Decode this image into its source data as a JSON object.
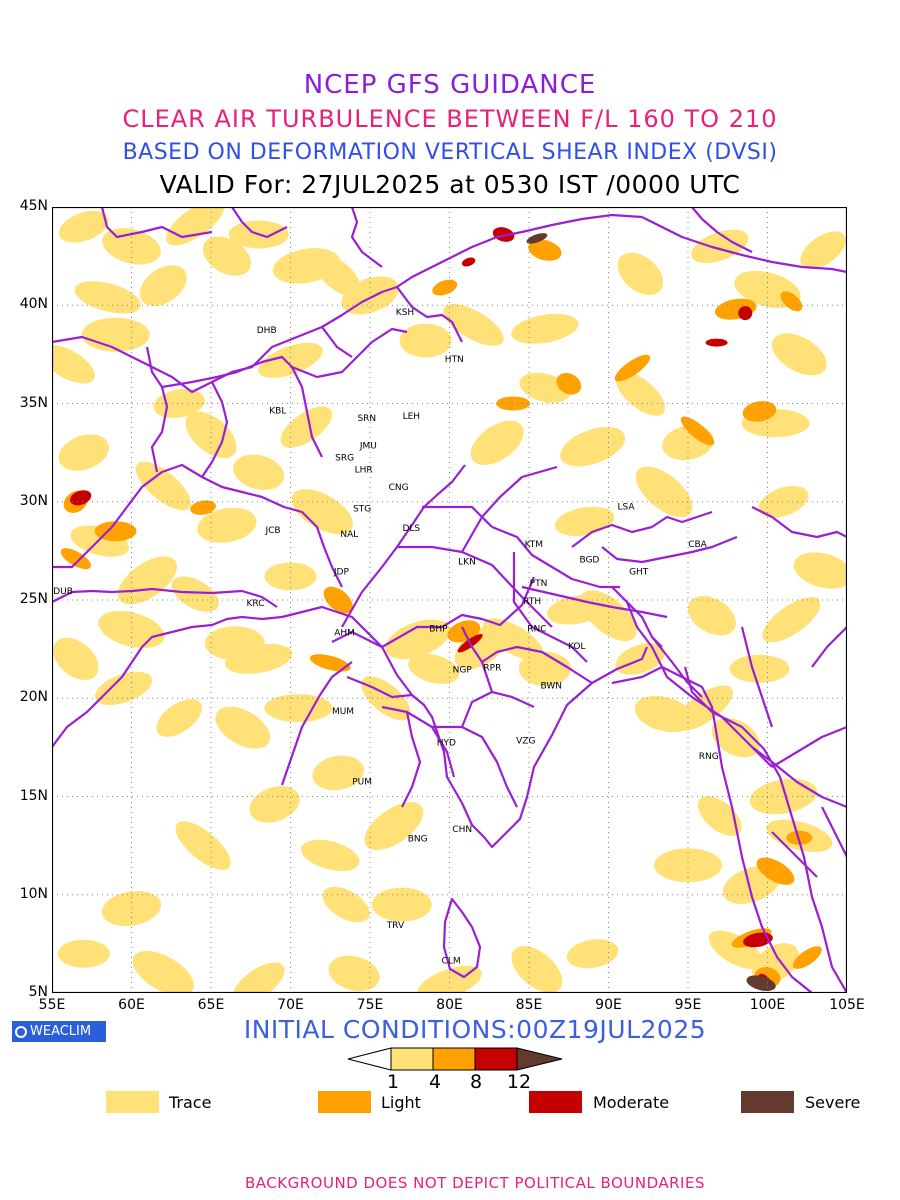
{
  "titles": {
    "line1": "NCEP GFS GUIDANCE",
    "line2": "CLEAR AIR TURBULENCE BETWEEN F/L 160 TO 210",
    "line3": "BASED ON DEFORMATION VERTICAL SHEAR INDEX (DVSI)",
    "line4": "VALID For: 27JUL2025 at 0530 IST /0000 UTC"
  },
  "axes": {
    "lat_labels": [
      "45N",
      "40N",
      "35N",
      "30N",
      "25N",
      "20N",
      "15N",
      "10N",
      "5N"
    ],
    "lon_labels": [
      "55E",
      "60E",
      "65E",
      "70E",
      "75E",
      "80E",
      "85E",
      "90E",
      "95E",
      "100E",
      "105E"
    ],
    "lat_range": [
      5,
      45
    ],
    "lon_range": [
      55,
      105
    ]
  },
  "stations": [
    {
      "code": "KSH",
      "lon": 77.2,
      "lat": 39.5
    },
    {
      "code": "DHB",
      "lon": 68.5,
      "lat": 38.6
    },
    {
      "code": "HTN",
      "lon": 80.3,
      "lat": 37.1
    },
    {
      "code": "KBL",
      "lon": 69.2,
      "lat": 34.5
    },
    {
      "code": "SRN",
      "lon": 74.8,
      "lat": 34.1
    },
    {
      "code": "LEH",
      "lon": 77.6,
      "lat": 34.2
    },
    {
      "code": "JMU",
      "lon": 74.9,
      "lat": 32.7
    },
    {
      "code": "SRG",
      "lon": 73.4,
      "lat": 32.1
    },
    {
      "code": "LHR",
      "lon": 74.6,
      "lat": 31.5
    },
    {
      "code": "CNG",
      "lon": 76.8,
      "lat": 30.6
    },
    {
      "code": "STG",
      "lon": 74.5,
      "lat": 29.5
    },
    {
      "code": "DLS",
      "lon": 77.6,
      "lat": 28.5
    },
    {
      "code": "NAL",
      "lon": 73.7,
      "lat": 28.2
    },
    {
      "code": "JCB",
      "lon": 68.9,
      "lat": 28.4
    },
    {
      "code": "LSA",
      "lon": 91.1,
      "lat": 29.6
    },
    {
      "code": "KTM",
      "lon": 85.3,
      "lat": 27.7
    },
    {
      "code": "CBA",
      "lon": 95.6,
      "lat": 27.7
    },
    {
      "code": "BGD",
      "lon": 88.8,
      "lat": 26.9
    },
    {
      "code": "GHT",
      "lon": 91.9,
      "lat": 26.3
    },
    {
      "code": "LKN",
      "lon": 81.1,
      "lat": 26.8
    },
    {
      "code": "JDP",
      "lon": 73.2,
      "lat": 26.3
    },
    {
      "code": "PTN",
      "lon": 85.6,
      "lat": 25.7
    },
    {
      "code": "DUB",
      "lon": 55.7,
      "lat": 25.3
    },
    {
      "code": "KRC",
      "lon": 67.8,
      "lat": 24.7
    },
    {
      "code": "RTH",
      "lon": 85.2,
      "lat": 24.8
    },
    {
      "code": "AHM",
      "lon": 73.4,
      "lat": 23.2
    },
    {
      "code": "BHP",
      "lon": 79.3,
      "lat": 23.4
    },
    {
      "code": "RNC",
      "lon": 85.5,
      "lat": 23.4
    },
    {
      "code": "KOL",
      "lon": 88.0,
      "lat": 22.5
    },
    {
      "code": "NGP",
      "lon": 80.8,
      "lat": 21.3
    },
    {
      "code": "RPR",
      "lon": 82.7,
      "lat": 21.4
    },
    {
      "code": "BWN",
      "lon": 86.4,
      "lat": 20.5
    },
    {
      "code": "MUM",
      "lon": 73.3,
      "lat": 19.2
    },
    {
      "code": "HYD",
      "lon": 79.8,
      "lat": 17.6
    },
    {
      "code": "VZG",
      "lon": 84.8,
      "lat": 17.7
    },
    {
      "code": "RNG",
      "lon": 96.3,
      "lat": 16.9
    },
    {
      "code": "PUM",
      "lon": 74.5,
      "lat": 15.6
    },
    {
      "code": "CHN",
      "lon": 80.8,
      "lat": 13.2
    },
    {
      "code": "BNG",
      "lon": 78.0,
      "lat": 12.7
    },
    {
      "code": "TRV",
      "lon": 76.6,
      "lat": 8.3
    },
    {
      "code": "CLM",
      "lon": 80.1,
      "lat": 6.5
    }
  ],
  "turbulence_areas": {
    "trace": [
      [
        57,
        44
      ],
      [
        60,
        43
      ],
      [
        64,
        44.2
      ],
      [
        66,
        42.5
      ],
      [
        68,
        43.6
      ],
      [
        71,
        42
      ],
      [
        73,
        41.5
      ],
      [
        75,
        40.5
      ],
      [
        58.5,
        40.4
      ],
      [
        62,
        41
      ],
      [
        56,
        37
      ],
      [
        59,
        38.5
      ],
      [
        63,
        35
      ],
      [
        65,
        33.4
      ],
      [
        70,
        37.2
      ],
      [
        68,
        31.5
      ],
      [
        71,
        33.8
      ],
      [
        72,
        29.5
      ],
      [
        70,
        26.2
      ],
      [
        66,
        28.8
      ],
      [
        62,
        30.8
      ],
      [
        57,
        32.5
      ],
      [
        58,
        28
      ],
      [
        61,
        26
      ],
      [
        64,
        25.3
      ],
      [
        66.5,
        22.8
      ],
      [
        68,
        22
      ],
      [
        56.5,
        22
      ],
      [
        59.5,
        20.5
      ],
      [
        60,
        23.5
      ],
      [
        63,
        19
      ],
      [
        67,
        18.5
      ],
      [
        70.5,
        19.5
      ],
      [
        73,
        16.2
      ],
      [
        76,
        20
      ],
      [
        78,
        23
      ],
      [
        79,
        21.5
      ],
      [
        82,
        22.6
      ],
      [
        84,
        23
      ],
      [
        86,
        21.5
      ],
      [
        88,
        24.5
      ],
      [
        90,
        24.2
      ],
      [
        92,
        22
      ],
      [
        93.5,
        19.2
      ],
      [
        96,
        19.5
      ],
      [
        98,
        18
      ],
      [
        99.5,
        21.5
      ],
      [
        101,
        15
      ],
      [
        97,
        14
      ],
      [
        99,
        10.5
      ],
      [
        102,
        13
      ],
      [
        100.5,
        6.5
      ],
      [
        98,
        7.2
      ],
      [
        95,
        11.5
      ],
      [
        89,
        7
      ],
      [
        85.5,
        6.2
      ],
      [
        80,
        5.5
      ],
      [
        74,
        6
      ],
      [
        68,
        5.5
      ],
      [
        62,
        6
      ],
      [
        57,
        7
      ],
      [
        60,
        9.3
      ],
      [
        64.5,
        12.5
      ],
      [
        69,
        14.6
      ],
      [
        72.5,
        12
      ],
      [
        76.5,
        13.5
      ],
      [
        73.5,
        9.5
      ],
      [
        77,
        9.5
      ],
      [
        86,
        38.8
      ],
      [
        92,
        41.6
      ],
      [
        97,
        43
      ],
      [
        100,
        40.8
      ],
      [
        103.5,
        42.8
      ],
      [
        102,
        37.5
      ],
      [
        100.5,
        34
      ],
      [
        95,
        33
      ],
      [
        92,
        35.5
      ],
      [
        89,
        32.8
      ],
      [
        86,
        35.8
      ],
      [
        83,
        33
      ],
      [
        81.5,
        39
      ],
      [
        78.5,
        38.2
      ],
      [
        88.5,
        29
      ],
      [
        93.5,
        30.5
      ],
      [
        101,
        30
      ],
      [
        103.5,
        26.5
      ],
      [
        101.5,
        24
      ],
      [
        96.5,
        24.2
      ]
    ],
    "light": [
      [
        79.7,
        40.9
      ],
      [
        86,
        42.8
      ],
      [
        91.5,
        36.8
      ],
      [
        87.5,
        36
      ],
      [
        84,
        35
      ],
      [
        98,
        39.8
      ],
      [
        101.5,
        40.2
      ],
      [
        80.9,
        23.4
      ],
      [
        72.5,
        21.8
      ],
      [
        56.5,
        30
      ],
      [
        56.5,
        27.1
      ],
      [
        59,
        28.5
      ],
      [
        64.5,
        29.7
      ],
      [
        73,
        25
      ],
      [
        99,
        7.8
      ],
      [
        100,
        5.8
      ],
      [
        102.5,
        6.8
      ],
      [
        100.5,
        11.2
      ],
      [
        102,
        12.9
      ],
      [
        99.5,
        34.6
      ],
      [
        95.6,
        33.6
      ]
    ],
    "moderate": [
      [
        81.2,
        42.2
      ],
      [
        83.4,
        43.6
      ],
      [
        81.3,
        22.8
      ],
      [
        98.6,
        39.6
      ],
      [
        96.8,
        38.1
      ],
      [
        99.4,
        7.7
      ],
      [
        99.8,
        5.7
      ],
      [
        56.8,
        30.2
      ]
    ],
    "severe": [
      [
        85.5,
        43.4
      ],
      [
        99.6,
        5.5
      ]
    ]
  },
  "colorbar": {
    "ticks": [
      "1",
      "4",
      "8",
      "12"
    ],
    "colors": {
      "trace": "#ffe178",
      "light": "#ffa100",
      "moderate": "#c40000",
      "severe": "#633a2d"
    }
  },
  "legend": [
    {
      "label": "Trace",
      "color": "#ffe178"
    },
    {
      "label": "Light",
      "color": "#ffa100"
    },
    {
      "label": "Moderate",
      "color": "#c40000"
    },
    {
      "label": "Severe",
      "color": "#633a2d"
    }
  ],
  "boundary_color": "#9a1fd3",
  "logo": {
    "text": "WEACLIM"
  },
  "initial_conditions": "INITIAL CONDITIONS:00Z19JUL2025",
  "footer": "BACKGROUND DOES NOT DEPICT POLITICAL BOUNDARIES"
}
